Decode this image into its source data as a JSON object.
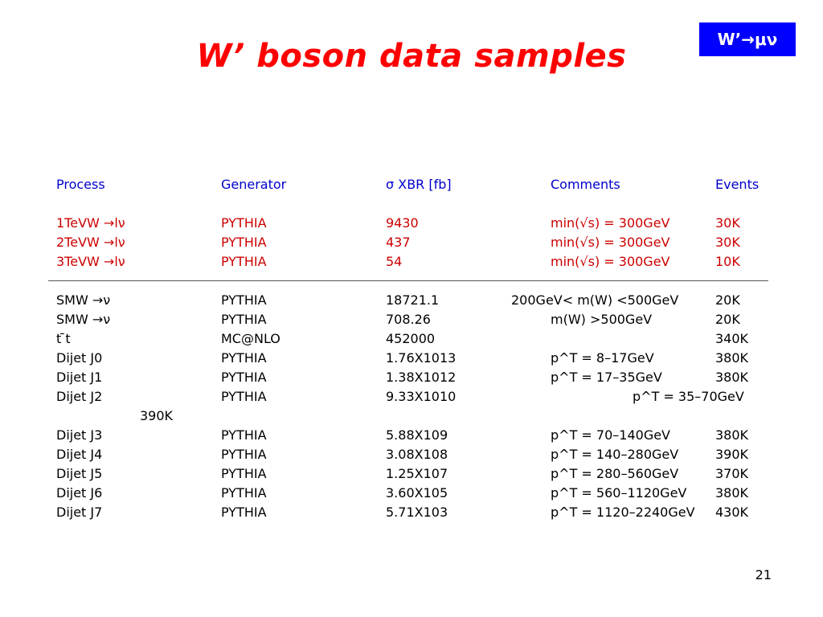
{
  "title": "W’ boson data samples",
  "badge": "W’→μν",
  "header": [
    "Process",
    "Generator",
    "σ XBR [fb]",
    "Comments",
    "Events"
  ],
  "signal_rows": [
    [
      "1TeVW →lν",
      "PYTHIA",
      "9430",
      "min(√s) = 300GeV",
      "30K"
    ],
    [
      "2TeVW →lν",
      "PYTHIA",
      "437",
      "min(√s) = 300GeV",
      "30K"
    ],
    [
      "3TeVW →lν",
      "PYTHIA",
      "54",
      "min(√s) = 300GeV",
      "10K"
    ]
  ],
  "background_rows": [
    [
      "SMW →ν",
      "PYTHIA",
      "18721.1",
      "200GeV< m(W) <500GeV",
      "20K"
    ],
    [
      "SMW →ν",
      "PYTHIA",
      " 708.26",
      "m(W) >500GeV",
      "20K"
    ],
    [
      "t ̄t",
      "MC@NLO",
      "452000",
      "",
      "340K"
    ],
    [
      "Dijet J0",
      "PYTHIA",
      "1.76X1013",
      "p^T = 8–17GeV",
      "380K"
    ],
    [
      "Dijet J1",
      "PYTHIA",
      "1.38X1012",
      "p^T = 17–35GeV",
      "380K"
    ],
    [
      "Dijet J2",
      "PYTHIA",
      "9.33X1010",
      "p^T = 35–70GeV",
      "390K"
    ],
    [
      "Dijet J3",
      "PYTHIA",
      "5.88X109",
      "p^T = 70–140GeV",
      "380K"
    ],
    [
      "Dijet J4",
      "PYTHIA",
      "3.08X108",
      "p^T = 140–280GeV",
      "390K"
    ],
    [
      "Dijet J5",
      "PYTHIA",
      "1.25X107",
      "p^T = 280–560GeV",
      "370K"
    ],
    [
      "Dijet J6",
      "PYTHIA",
      "3.60X105",
      "p^T = 560–1120GeV",
      "380K"
    ],
    [
      "Dijet J7",
      "PYTHIA",
      "5.71X103",
      "p^T = 1120–2240GeV",
      "430K"
    ]
  ],
  "page_number": "21"
}
